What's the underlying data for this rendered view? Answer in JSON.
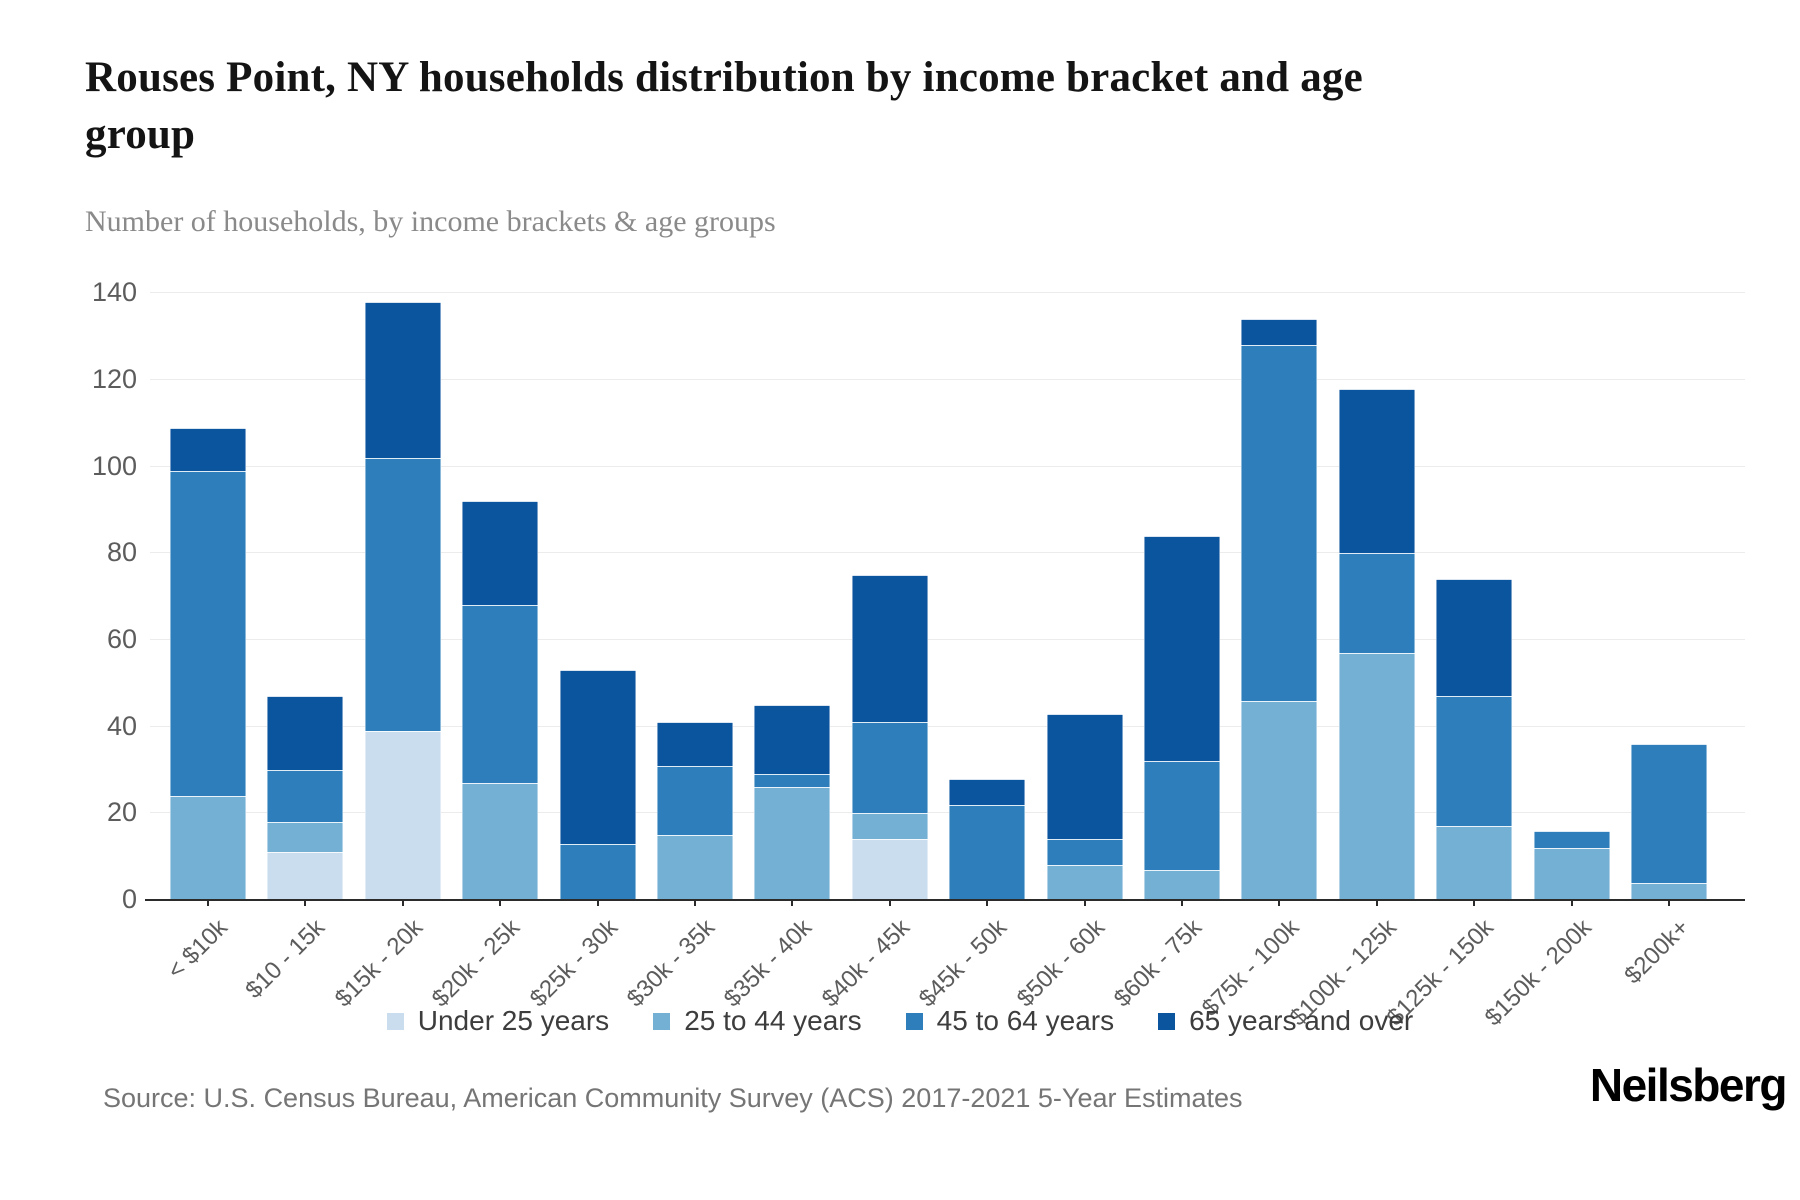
{
  "header": {
    "title": "Rouses Point, NY households distribution by income bracket and age group",
    "subtitle": "Number of households, by income brackets & age groups"
  },
  "footer": {
    "source": "Source: U.S. Census Bureau, American Community Survey (ACS) 2017-2021 5-Year Estimates",
    "logo": "Neilsberg"
  },
  "chart_data": {
    "type": "bar",
    "stacked": true,
    "title": "Rouses Point, NY households distribution by income bracket and age group",
    "subtitle": "Number of households, by income brackets & age groups",
    "xlabel": "",
    "ylabel": "",
    "ylim": [
      0,
      140
    ],
    "yticks": [
      0,
      20,
      40,
      60,
      80,
      100,
      120,
      140
    ],
    "grid": true,
    "legend_position": "bottom",
    "categories": [
      "< $10k",
      "$10 - 15k",
      "$15k - 20k",
      "$20k - 25k",
      "$25k - 30k",
      "$30k - 35k",
      "$35k - 40k",
      "$40k - 45k",
      "$45k - 50k",
      "$50k - 60k",
      "$60k - 75k",
      "$75k - 100k",
      "$100k - 125k",
      "$125k - 150k",
      "$150k - 200k",
      "$200k+"
    ],
    "series": [
      {
        "name": "Under 25 years",
        "color": "#c9ddef",
        "values": [
          0,
          11,
          39,
          0,
          0,
          0,
          0,
          14,
          0,
          0,
          0,
          0,
          0,
          0,
          0,
          0
        ]
      },
      {
        "name": "25 to 44 years",
        "color": "#74afd4",
        "values": [
          24,
          7,
          0,
          27,
          0,
          15,
          26,
          6,
          0,
          8,
          7,
          46,
          57,
          17,
          12,
          4
        ]
      },
      {
        "name": "45 to 64 years",
        "color": "#2e7ebc",
        "values": [
          75,
          12,
          63,
          41,
          13,
          16,
          3,
          21,
          22,
          6,
          25,
          82,
          23,
          30,
          4,
          32
        ]
      },
      {
        "name": "65 years and over",
        "color": "#0b559e",
        "values": [
          10,
          17,
          36,
          24,
          40,
          10,
          16,
          34,
          6,
          29,
          52,
          6,
          38,
          27,
          0,
          0
        ]
      }
    ],
    "totals": [
      109,
      47,
      138,
      92,
      53,
      41,
      45,
      75,
      28,
      43,
      84,
      134,
      118,
      74,
      16,
      36
    ]
  }
}
